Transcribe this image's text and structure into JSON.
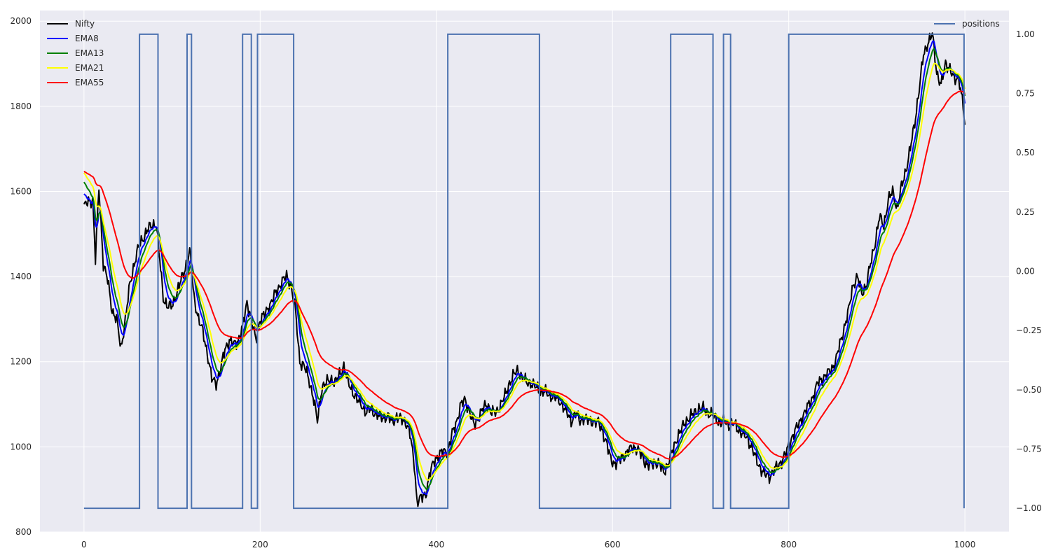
{
  "chart_data": {
    "type": "line",
    "title": "",
    "xlabel": "",
    "ylabel": "",
    "xlim": [
      -50,
      1050
    ],
    "ylim": [
      800,
      2025
    ],
    "y2lim": [
      -1.1,
      1.1
    ],
    "grid": true,
    "x_ticks": [
      0,
      200,
      400,
      600,
      800,
      1000
    ],
    "y_ticks": [
      800,
      1000,
      1200,
      1400,
      1600,
      1800,
      2000
    ],
    "y2_ticks": [
      1.0,
      0.75,
      0.5,
      0.25,
      0.0,
      -0.25,
      -0.5,
      -0.75,
      -1.0
    ],
    "y2_tick_labels": [
      "1.00",
      "0.75",
      "0.50",
      "0.25",
      "0.00",
      "−0.25",
      "−0.50",
      "−0.75",
      "−1.00"
    ],
    "colors": {
      "background": "#eaeaf2",
      "grid": "#ffffff",
      "Nifty": "#000000",
      "EMA8": "#0000ff",
      "EMA13": "#008000",
      "EMA21": "#ffff00",
      "EMA55": "#ff0000",
      "positions": "#4c72b0"
    },
    "legend_left": {
      "placement": "top-left",
      "entries": [
        "Nifty",
        "EMA8",
        "EMA13",
        "EMA21",
        "EMA55"
      ]
    },
    "legend_right": {
      "placement": "top-right",
      "entries": [
        "positions"
      ]
    },
    "price_anchors": [
      [
        0,
        1565
      ],
      [
        5,
        1575
      ],
      [
        10,
        1580
      ],
      [
        13,
        1440
      ],
      [
        17,
        1610
      ],
      [
        22,
        1430
      ],
      [
        27,
        1390
      ],
      [
        32,
        1320
      ],
      [
        37,
        1300
      ],
      [
        42,
        1230
      ],
      [
        47,
        1300
      ],
      [
        52,
        1380
      ],
      [
        57,
        1430
      ],
      [
        62,
        1470
      ],
      [
        67,
        1490
      ],
      [
        72,
        1510
      ],
      [
        77,
        1520
      ],
      [
        82,
        1525
      ],
      [
        86,
        1440
      ],
      [
        90,
        1350
      ],
      [
        95,
        1330
      ],
      [
        100,
        1330
      ],
      [
        105,
        1360
      ],
      [
        110,
        1390
      ],
      [
        115,
        1420
      ],
      [
        120,
        1460
      ],
      [
        125,
        1350
      ],
      [
        130,
        1300
      ],
      [
        135,
        1270
      ],
      [
        140,
        1220
      ],
      [
        145,
        1160
      ],
      [
        150,
        1150
      ],
      [
        155,
        1180
      ],
      [
        160,
        1230
      ],
      [
        165,
        1250
      ],
      [
        170,
        1240
      ],
      [
        175,
        1250
      ],
      [
        180,
        1280
      ],
      [
        185,
        1340
      ],
      [
        190,
        1300
      ],
      [
        195,
        1250
      ],
      [
        200,
        1300
      ],
      [
        205,
        1310
      ],
      [
        210,
        1330
      ],
      [
        215,
        1350
      ],
      [
        220,
        1370
      ],
      [
        225,
        1390
      ],
      [
        230,
        1400
      ],
      [
        235,
        1380
      ],
      [
        240,
        1320
      ],
      [
        245,
        1200
      ],
      [
        250,
        1190
      ],
      [
        255,
        1160
      ],
      [
        260,
        1120
      ],
      [
        265,
        1060
      ],
      [
        270,
        1140
      ],
      [
        275,
        1150
      ],
      [
        280,
        1160
      ],
      [
        285,
        1150
      ],
      [
        290,
        1170
      ],
      [
        295,
        1190
      ],
      [
        300,
        1150
      ],
      [
        305,
        1130
      ],
      [
        310,
        1110
      ],
      [
        315,
        1100
      ],
      [
        320,
        1080
      ],
      [
        325,
        1090
      ],
      [
        330,
        1080
      ],
      [
        335,
        1070
      ],
      [
        340,
        1070
      ],
      [
        345,
        1070
      ],
      [
        350,
        1060
      ],
      [
        355,
        1070
      ],
      [
        360,
        1065
      ],
      [
        365,
        1060
      ],
      [
        370,
        1030
      ],
      [
        375,
        960
      ],
      [
        378,
        870
      ],
      [
        383,
        880
      ],
      [
        388,
        890
      ],
      [
        393,
        940
      ],
      [
        398,
        970
      ],
      [
        403,
        980
      ],
      [
        408,
        990
      ],
      [
        413,
        990
      ],
      [
        418,
        1030
      ],
      [
        423,
        1060
      ],
      [
        428,
        1100
      ],
      [
        433,
        1110
      ],
      [
        438,
        1080
      ],
      [
        443,
        1050
      ],
      [
        448,
        1070
      ],
      [
        453,
        1090
      ],
      [
        458,
        1100
      ],
      [
        463,
        1080
      ],
      [
        468,
        1080
      ],
      [
        473,
        1100
      ],
      [
        478,
        1120
      ],
      [
        483,
        1150
      ],
      [
        488,
        1170
      ],
      [
        493,
        1180
      ],
      [
        498,
        1160
      ],
      [
        503,
        1150
      ],
      [
        508,
        1150
      ],
      [
        513,
        1140
      ],
      [
        518,
        1130
      ],
      [
        523,
        1130
      ],
      [
        528,
        1120
      ],
      [
        533,
        1120
      ],
      [
        538,
        1110
      ],
      [
        543,
        1100
      ],
      [
        548,
        1080
      ],
      [
        553,
        1060
      ],
      [
        558,
        1080
      ],
      [
        563,
        1060
      ],
      [
        568,
        1070
      ],
      [
        573,
        1060
      ],
      [
        578,
        1060
      ],
      [
        583,
        1060
      ],
      [
        588,
        1040
      ],
      [
        593,
        1010
      ],
      [
        598,
        970
      ],
      [
        603,
        960
      ],
      [
        608,
        970
      ],
      [
        613,
        980
      ],
      [
        618,
        990
      ],
      [
        623,
        1000
      ],
      [
        628,
        995
      ],
      [
        633,
        980
      ],
      [
        638,
        960
      ],
      [
        643,
        955
      ],
      [
        648,
        965
      ],
      [
        653,
        960
      ],
      [
        658,
        940
      ],
      [
        663,
        960
      ],
      [
        668,
        990
      ],
      [
        673,
        1020
      ],
      [
        678,
        1040
      ],
      [
        683,
        1060
      ],
      [
        688,
        1070
      ],
      [
        693,
        1080
      ],
      [
        698,
        1090
      ],
      [
        703,
        1090
      ],
      [
        708,
        1080
      ],
      [
        713,
        1075
      ],
      [
        718,
        1065
      ],
      [
        723,
        1055
      ],
      [
        728,
        1060
      ],
      [
        733,
        1050
      ],
      [
        738,
        1055
      ],
      [
        743,
        1040
      ],
      [
        748,
        1030
      ],
      [
        753,
        1020
      ],
      [
        758,
        1000
      ],
      [
        763,
        970
      ],
      [
        768,
        950
      ],
      [
        773,
        935
      ],
      [
        778,
        930
      ],
      [
        783,
        945
      ],
      [
        788,
        955
      ],
      [
        793,
        970
      ],
      [
        798,
        990
      ],
      [
        803,
        1020
      ],
      [
        808,
        1040
      ],
      [
        813,
        1060
      ],
      [
        818,
        1080
      ],
      [
        823,
        1100
      ],
      [
        828,
        1120
      ],
      [
        833,
        1150
      ],
      [
        838,
        1160
      ],
      [
        843,
        1170
      ],
      [
        848,
        1180
      ],
      [
        853,
        1200
      ],
      [
        858,
        1240
      ],
      [
        863,
        1280
      ],
      [
        868,
        1320
      ],
      [
        873,
        1380
      ],
      [
        878,
        1400
      ],
      [
        883,
        1360
      ],
      [
        888,
        1380
      ],
      [
        893,
        1430
      ],
      [
        898,
        1480
      ],
      [
        903,
        1540
      ],
      [
        908,
        1520
      ],
      [
        913,
        1580
      ],
      [
        918,
        1600
      ],
      [
        923,
        1560
      ],
      [
        928,
        1610
      ],
      [
        933,
        1650
      ],
      [
        938,
        1700
      ],
      [
        943,
        1760
      ],
      [
        948,
        1840
      ],
      [
        953,
        1920
      ],
      [
        958,
        1950
      ],
      [
        963,
        1970
      ],
      [
        968,
        1880
      ],
      [
        973,
        1850
      ],
      [
        978,
        1900
      ],
      [
        983,
        1890
      ],
      [
        988,
        1860
      ],
      [
        993,
        1870
      ],
      [
        998,
        1800
      ],
      [
        1000,
        1750
      ]
    ],
    "ema_periods": {
      "EMA8": 8,
      "EMA13": 13,
      "EMA21": 21,
      "EMA55": 55
    },
    "positions_changes": [
      [
        0,
        -1
      ],
      [
        63,
        1
      ],
      [
        83,
        1
      ],
      [
        84,
        -1
      ],
      [
        117,
        1
      ],
      [
        122,
        -1
      ],
      [
        180,
        1
      ],
      [
        190,
        -1
      ],
      [
        197,
        1
      ],
      [
        238,
        -1
      ],
      [
        413,
        1
      ],
      [
        517,
        -1
      ],
      [
        666,
        1
      ],
      [
        713,
        1
      ],
      [
        714,
        -1
      ],
      [
        726,
        1
      ],
      [
        734,
        -1
      ],
      [
        800,
        1
      ],
      [
        998,
        1
      ],
      [
        999,
        -1
      ]
    ]
  }
}
